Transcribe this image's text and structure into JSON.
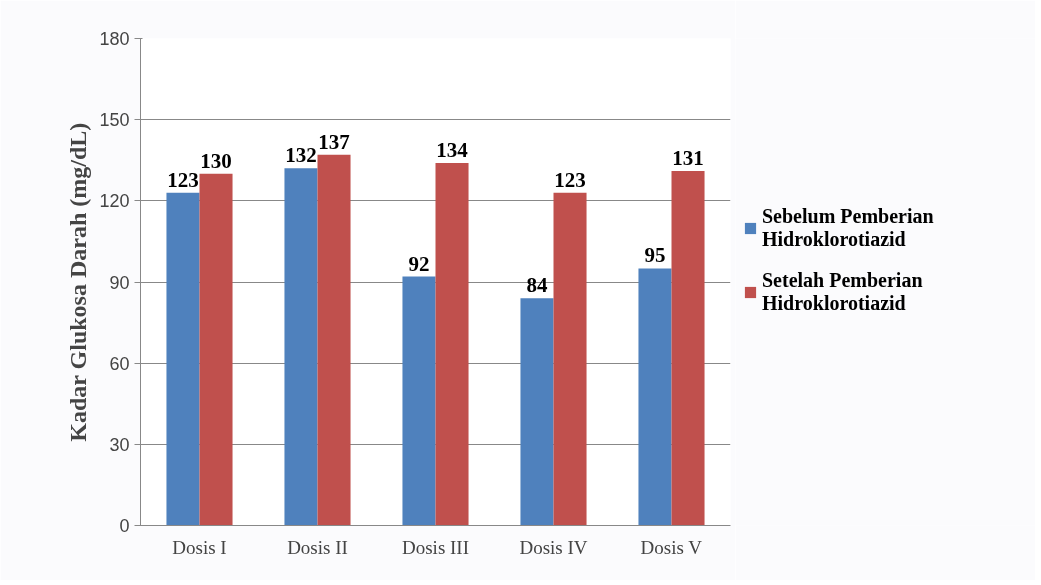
{
  "chart_data": {
    "type": "bar",
    "ylabel": "Kadar Glukosa Darah (mg/dL)",
    "categories": [
      "Dosis I",
      "Dosis II",
      "Dosis III",
      "Dosis IV",
      "Dosis V"
    ],
    "series": [
      {
        "name": "Sebelum Pemberian Hidroklorotiazid",
        "color": "#4f81bd",
        "values": [
          123,
          132,
          92,
          84,
          95
        ]
      },
      {
        "name": "Setelah Pemberian Hidroklorotiazid",
        "color": "#c0504d",
        "values": [
          130,
          137,
          134,
          123,
          131
        ]
      }
    ],
    "ylim": [
      0,
      180
    ],
    "yticks": [
      0,
      30,
      60,
      90,
      120,
      150,
      180
    ],
    "grid": "y",
    "legend": "right",
    "data_labels": true
  }
}
